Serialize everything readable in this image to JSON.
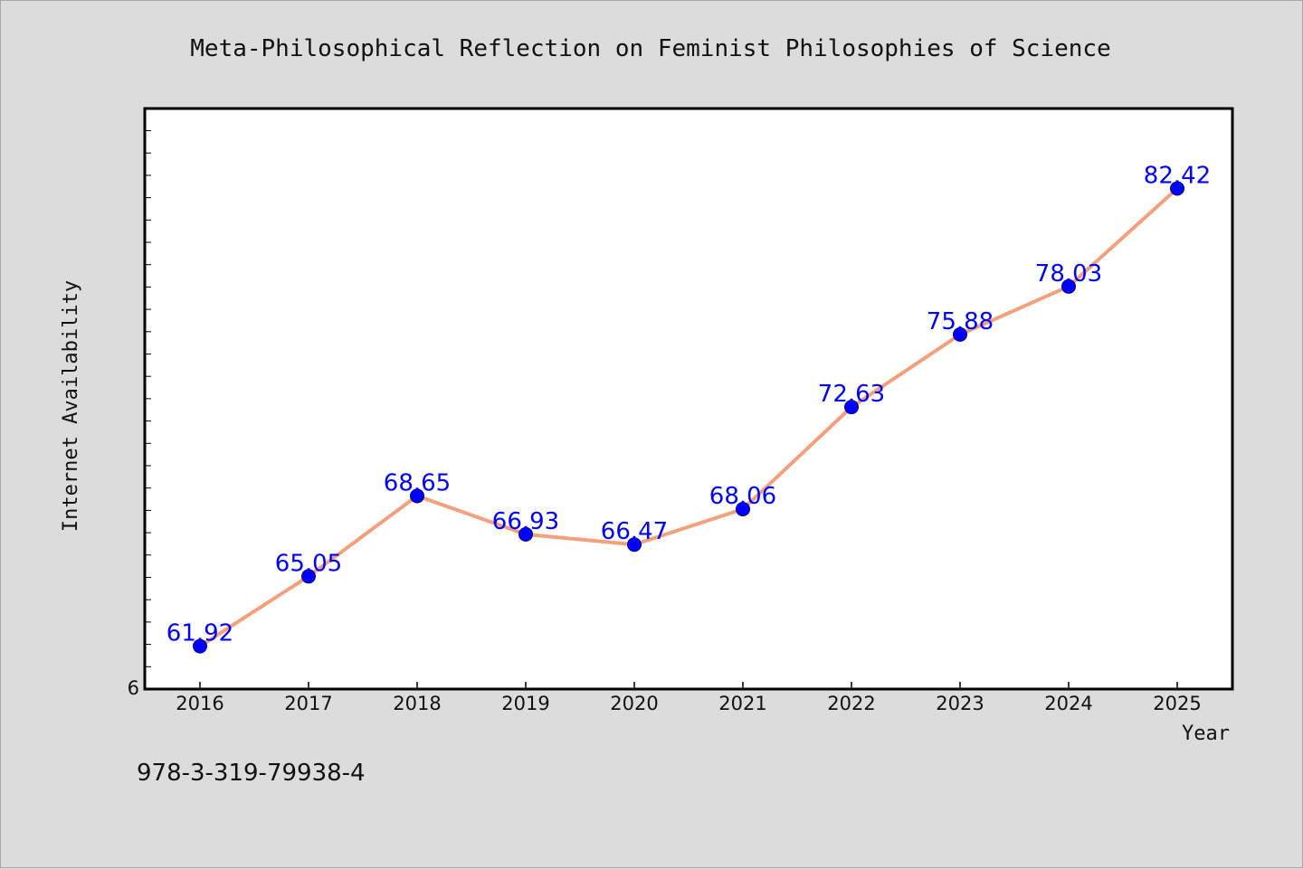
{
  "chart_data": {
    "type": "line",
    "title": "Meta-Philosophical Reflection on Feminist Philosophies of Science",
    "xlabel": "Year",
    "ylabel": "Internet Availability",
    "categories": [
      "2016",
      "2017",
      "2018",
      "2019",
      "2020",
      "2021",
      "2022",
      "2023",
      "2024",
      "2025"
    ],
    "series": [
      {
        "values": [
          61.92,
          65.05,
          68.65,
          66.93,
          66.47,
          68.06,
          72.63,
          75.88,
          78.03,
          82.42
        ],
        "data_labels": [
          "61.92",
          "65.05",
          "68.65",
          "66.93",
          "66.47",
          "68.06",
          "72.63",
          "75.88",
          "78.03",
          "82.42"
        ],
        "line_color": "#f4a07c",
        "marker_color": "#0000ff"
      }
    ],
    "ylim": [
      60,
      86
    ],
    "y_tick_labels": [
      "6"
    ],
    "grid": false,
    "legend": "none"
  },
  "footer": {
    "isbn": "978-3-319-79938-4"
  },
  "colors": {
    "background": "#dcdcdc",
    "plot_area": "#ffffff"
  }
}
